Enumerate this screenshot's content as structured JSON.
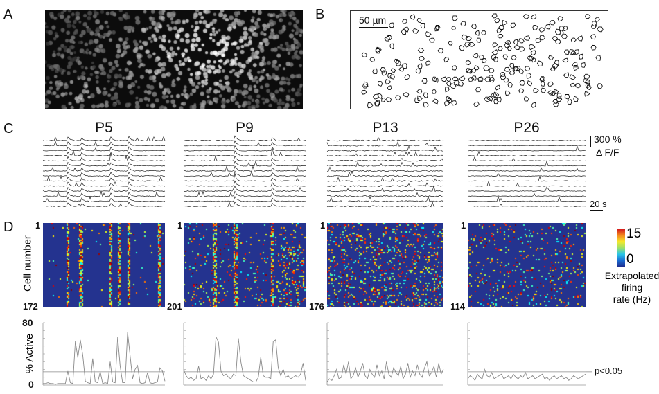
{
  "panels": {
    "a": "A",
    "b": "B",
    "c": "C",
    "d": "D"
  },
  "scale_bar_b": "50 µm",
  "conditions": [
    "P5",
    "P9",
    "P13",
    "P26"
  ],
  "dff_scale": {
    "value": "300 %",
    "unit": "Δ F/F"
  },
  "time_scale": "20 s",
  "heatmap": {
    "ylabel": "Cell number",
    "top_label": "1",
    "cell_counts": [
      "172",
      "201",
      "176",
      "114"
    ]
  },
  "colorbar": {
    "max": "15",
    "min": "0",
    "label_line1": "Extrapolated",
    "label_line2": "firing",
    "label_line3": "rate (Hz)",
    "colormap": "jet"
  },
  "chart_data": {
    "type": "line",
    "ylabel": "% Active",
    "ylim": [
      0,
      80
    ],
    "ytick_labels": [
      "80",
      "0"
    ],
    "threshold": {
      "value": 17,
      "label": "p<0.05"
    },
    "series": [
      {
        "values": [
          2,
          2,
          3,
          2,
          2,
          1,
          2,
          2,
          2,
          2,
          18,
          3,
          2,
          56,
          35,
          58,
          38,
          5,
          3,
          2,
          34,
          4,
          3,
          17,
          2,
          3,
          2,
          30,
          4,
          3,
          62,
          25,
          3,
          3,
          68,
          38,
          8,
          20,
          25,
          3,
          2,
          3,
          16,
          3,
          2,
          3,
          4,
          22,
          18,
          5
        ]
      },
      {
        "values": [
          20,
          12,
          8,
          10,
          6,
          8,
          24,
          8,
          10,
          6,
          12,
          8,
          14,
          62,
          55,
          18,
          12,
          14,
          10,
          8,
          14,
          12,
          60,
          30,
          12,
          10,
          8,
          6,
          4,
          4,
          10,
          36,
          12,
          10,
          10,
          8,
          56,
          58,
          22,
          12,
          20,
          10,
          12,
          8,
          10,
          12,
          10,
          14,
          28,
          6
        ]
      },
      {
        "values": [
          4,
          8,
          6,
          12,
          20,
          8,
          10,
          26,
          14,
          30,
          8,
          12,
          22,
          10,
          18,
          28,
          12,
          8,
          20,
          14,
          10,
          26,
          12,
          18,
          8,
          30,
          14,
          10,
          22,
          16,
          12,
          24,
          8,
          14,
          28,
          10,
          18,
          12,
          26,
          14,
          10,
          22,
          30,
          12,
          16,
          24,
          10,
          28,
          14,
          20
        ]
      },
      {
        "values": [
          8,
          12,
          10,
          6,
          14,
          10,
          8,
          20,
          12,
          10,
          16,
          8,
          10,
          12,
          14,
          8,
          10,
          12,
          8,
          14,
          10,
          8,
          12,
          10,
          16,
          8,
          10,
          12,
          8,
          10,
          12,
          14,
          8,
          10,
          6,
          10,
          12,
          8,
          10,
          12,
          8,
          10,
          6,
          8,
          12,
          10,
          8,
          10,
          12,
          14
        ]
      }
    ]
  }
}
